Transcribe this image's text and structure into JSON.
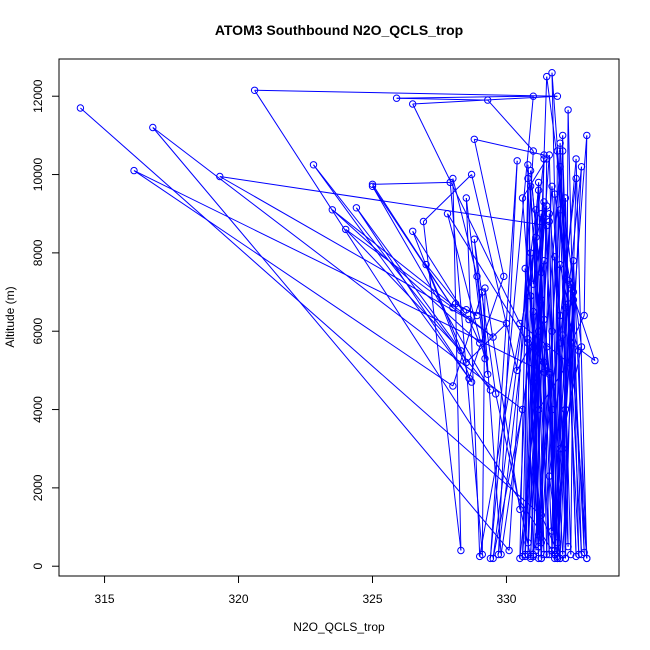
{
  "chart_data": {
    "type": "line",
    "title": "ATOM3 Southbound N2O_QCLS_trop",
    "xlabel": "N2O_QCLS_trop",
    "ylabel": "Altitude (m)",
    "xlim": [
      313.3,
      334.2
    ],
    "ylim": [
      -250,
      12950
    ],
    "x_ticks": [
      315,
      320,
      325,
      330
    ],
    "y_ticks": [
      0,
      2000,
      4000,
      6000,
      8000,
      10000,
      12000
    ],
    "grid": false,
    "legend": "none",
    "series": [
      {
        "color": "#0000ff",
        "marker": "open-circle",
        "points": [
          [
            314.1,
            11700
          ],
          [
            331.3,
            1300
          ],
          [
            332.0,
            200
          ],
          [
            331.6,
            2300
          ],
          [
            332.8,
            10200
          ],
          [
            332.1,
            300
          ],
          [
            331.4,
            9300
          ],
          [
            331.0,
            250
          ],
          [
            332.6,
            9900
          ],
          [
            332.2,
            200
          ],
          [
            332.3,
            11650
          ],
          [
            332.7,
            300
          ],
          [
            331.9,
            10600
          ],
          [
            331.8,
            400
          ],
          [
            332.5,
            7800
          ],
          [
            333.0,
            200
          ],
          [
            331.7,
            12600
          ],
          [
            332.0,
            3000
          ],
          [
            332.8,
            5600
          ],
          [
            331.5,
            12500
          ],
          [
            330.9,
            200
          ],
          [
            331.4,
            10400
          ],
          [
            329.7,
            300
          ],
          [
            330.4,
            10350
          ],
          [
            329.4,
            200
          ],
          [
            331.0,
            12000
          ],
          [
            325.9,
            11950
          ],
          [
            329.3,
            11900
          ],
          [
            331.0,
            10600
          ],
          [
            330.1,
            400
          ],
          [
            316.8,
            11200
          ],
          [
            330.6,
            4000
          ],
          [
            329.5,
            200
          ],
          [
            331.2,
            9600
          ],
          [
            330.8,
            600
          ],
          [
            331.7,
            9700
          ],
          [
            332.2,
            4000
          ],
          [
            331.9,
            600
          ],
          [
            332.4,
            7100
          ],
          [
            333.3,
            5250
          ],
          [
            332.4,
            5700
          ],
          [
            332.9,
            6400
          ],
          [
            333.0,
            11000
          ],
          [
            332.1,
            3000
          ],
          [
            331.9,
            200
          ],
          [
            320.6,
            12150
          ],
          [
            331.9,
            12000
          ],
          [
            326.5,
            11800
          ],
          [
            330.5,
            6200
          ],
          [
            332.3,
            5200
          ],
          [
            331.2,
            4000
          ],
          [
            331.4,
            10500
          ],
          [
            328.8,
            10900
          ],
          [
            329.9,
            7400
          ],
          [
            328.6,
            4800
          ],
          [
            322.8,
            10250
          ],
          [
            329.4,
            4500
          ],
          [
            325.0,
            9700
          ],
          [
            328.0,
            6600
          ],
          [
            325.0,
            9750
          ],
          [
            327.9,
            9800
          ],
          [
            329.1,
            300
          ],
          [
            329.2,
            7100
          ],
          [
            330.5,
            1450
          ],
          [
            330.8,
            5800
          ],
          [
            331.2,
            200
          ],
          [
            330.8,
            9900
          ],
          [
            330.5,
            200
          ],
          [
            331.4,
            6300
          ],
          [
            330.4,
            5000
          ],
          [
            328.7,
            10000
          ],
          [
            326.9,
            8800
          ],
          [
            328.3,
            400
          ],
          [
            328.0,
            9900
          ],
          [
            328.9,
            7400
          ],
          [
            329.3,
            4900
          ],
          [
            328.8,
            8350
          ],
          [
            329.6,
            4400
          ],
          [
            330.9,
            250
          ],
          [
            331.4,
            7800
          ],
          [
            329.8,
            300
          ],
          [
            329.1,
            7000
          ],
          [
            328.0,
            4600
          ],
          [
            316.1,
            10100
          ],
          [
            331.4,
            4950
          ],
          [
            330.8,
            10250
          ],
          [
            330.7,
            250
          ],
          [
            331.3,
            9000
          ],
          [
            329.0,
            250
          ],
          [
            328.5,
            9400
          ],
          [
            329.2,
            5300
          ],
          [
            327.8,
            9000
          ],
          [
            330.8,
            5700
          ],
          [
            331.3,
            200
          ],
          [
            331.5,
            10400
          ],
          [
            330.6,
            9400
          ],
          [
            331.0,
            5600
          ],
          [
            331.6,
            4950
          ],
          [
            330.9,
            10100
          ],
          [
            331.7,
            4000
          ],
          [
            331.8,
            400
          ],
          [
            332.0,
            7700
          ],
          [
            332.3,
            6700
          ],
          [
            333.0,
            200
          ],
          [
            332.6,
            10400
          ],
          [
            332.0,
            5700
          ],
          [
            332.2,
            200
          ],
          [
            332.1,
            11000
          ],
          [
            331.7,
            900
          ],
          [
            332.0,
            10800
          ],
          [
            332.2,
            6600
          ],
          [
            332.7,
            5500
          ],
          [
            332.9,
            350
          ],
          [
            332.4,
            7200
          ],
          [
            332.0,
            200
          ],
          [
            331.6,
            10500
          ],
          [
            331.0,
            4700
          ],
          [
            331.3,
            6800
          ],
          [
            331.1,
            400
          ],
          [
            331.5,
            9200
          ],
          [
            331.0,
            7200
          ],
          [
            330.9,
            8000
          ],
          [
            331.2,
            500
          ],
          [
            331.6,
            4900
          ],
          [
            331.8,
            200
          ],
          [
            332.3,
            7300
          ],
          [
            331.8,
            9500
          ],
          [
            332.5,
            6800
          ],
          [
            332.4,
            300
          ],
          [
            332.0,
            9100
          ],
          [
            331.7,
            6000
          ],
          [
            331.3,
            200
          ],
          [
            331.1,
            8400
          ],
          [
            330.7,
            300
          ],
          [
            330.9,
            6900
          ],
          [
            331.2,
            9800
          ],
          [
            331.5,
            300
          ],
          [
            331.8,
            7900
          ],
          [
            332.3,
            500
          ],
          [
            332.1,
            10600
          ],
          [
            332.6,
            250
          ],
          [
            332.2,
            9400
          ],
          [
            331.9,
            200
          ],
          [
            332.5,
            7000
          ],
          [
            332.8,
            300
          ],
          [
            332.0,
            10200
          ],
          [
            331.4,
            5200
          ],
          [
            331.6,
            300
          ],
          [
            330.9,
            9700
          ],
          [
            330.6,
            250
          ],
          [
            331.2,
            6000
          ],
          [
            331.0,
            300
          ],
          [
            330.7,
            7600
          ],
          [
            331.3,
            600
          ],
          [
            331.6,
            8800
          ],
          [
            331.9,
            250
          ],
          [
            332.0,
            6400
          ],
          [
            331.6,
            9000
          ],
          [
            331.8,
            300
          ],
          [
            331.5,
            5600
          ],
          [
            331.2,
            800
          ],
          [
            331.0,
            6500
          ],
          [
            331.4,
            300
          ],
          [
            331.1,
            9100
          ],
          [
            330.8,
            300
          ],
          [
            331.3,
            7500
          ],
          [
            331.7,
            400
          ],
          [
            332.1,
            5900
          ],
          [
            331.8,
            300
          ],
          [
            331.5,
            8700
          ],
          [
            319.3,
            9950
          ],
          [
            328.6,
            6300
          ],
          [
            329.0,
            5700
          ],
          [
            323.5,
            9100
          ],
          [
            329.5,
            5850
          ],
          [
            324.0,
            8600
          ],
          [
            328.3,
            5500
          ],
          [
            324.4,
            9150
          ],
          [
            328.7,
            4700
          ],
          [
            326.5,
            8550
          ],
          [
            328.4,
            6500
          ],
          [
            327.0,
            7700
          ],
          [
            328.5,
            5200
          ],
          [
            330.0,
            6200
          ],
          [
            328.5,
            6550
          ],
          [
            328.1,
            6700
          ],
          [
            328.9,
            6400
          ]
        ]
      }
    ]
  }
}
